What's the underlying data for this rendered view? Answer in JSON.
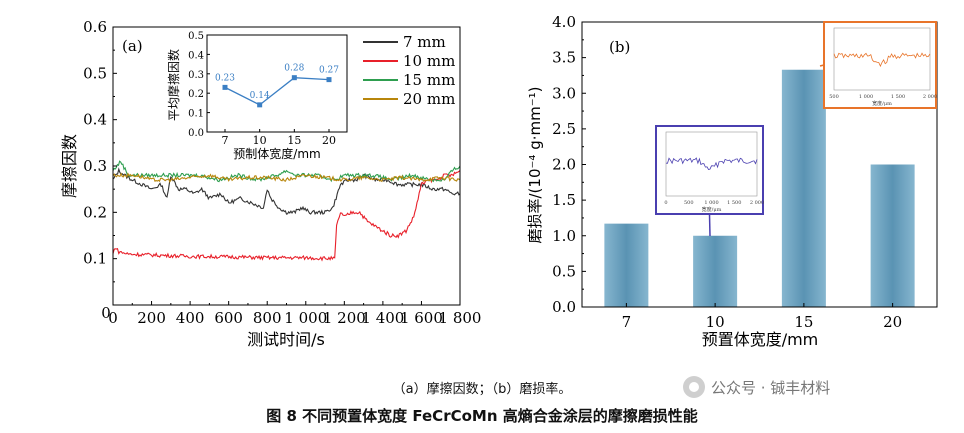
{
  "chart_data": [
    {
      "type": "line",
      "panel_label": "(a)",
      "xlabel": "测试时间/s",
      "ylabel": "摩擦因数",
      "xlim": [
        0,
        1800
      ],
      "ylim": [
        0,
        0.6
      ],
      "x_ticks": [
        "0",
        "200",
        "400",
        "600",
        "800",
        "1 000",
        "1 200",
        "1 400",
        "1 600",
        "1 800"
      ],
      "y_ticks": [
        "0.1",
        "0.2",
        "0.3",
        "0.4",
        "0.5",
        "0.6"
      ],
      "legend_position": "top-right",
      "series": [
        {
          "name": "7 mm",
          "color": "#333333",
          "x": [
            0,
            30,
            60,
            100,
            150,
            200,
            250,
            280,
            300,
            340,
            380,
            420,
            460,
            500,
            560,
            600,
            660,
            720,
            780,
            800,
            820,
            860,
            900,
            940,
            980,
            1020,
            1060,
            1100,
            1140,
            1180,
            1220,
            1260,
            1300,
            1360,
            1420,
            1480,
            1540,
            1600,
            1660,
            1720,
            1760,
            1800
          ],
          "y": [
            0.27,
            0.29,
            0.28,
            0.27,
            0.26,
            0.25,
            0.26,
            0.23,
            0.28,
            0.25,
            0.25,
            0.24,
            0.25,
            0.23,
            0.24,
            0.22,
            0.23,
            0.22,
            0.21,
            0.25,
            0.23,
            0.21,
            0.2,
            0.2,
            0.21,
            0.2,
            0.2,
            0.2,
            0.21,
            0.26,
            0.27,
            0.27,
            0.28,
            0.27,
            0.27,
            0.26,
            0.26,
            0.26,
            0.25,
            0.25,
            0.24,
            0.24
          ]
        },
        {
          "name": "10 mm",
          "color": "#e8202a",
          "x": [
            0,
            10,
            30,
            80,
            200,
            400,
            600,
            800,
            1000,
            1150,
            1160,
            1180,
            1200,
            1240,
            1280,
            1320,
            1360,
            1400,
            1440,
            1480,
            1520,
            1560,
            1600,
            1640,
            1680,
            1720,
            1760,
            1800
          ],
          "y": [
            0.11,
            0.125,
            0.115,
            0.11,
            0.108,
            0.105,
            0.104,
            0.102,
            0.102,
            0.1,
            0.17,
            0.2,
            0.19,
            0.2,
            0.2,
            0.18,
            0.17,
            0.16,
            0.15,
            0.15,
            0.16,
            0.19,
            0.26,
            0.27,
            0.27,
            0.28,
            0.28,
            0.29
          ]
        },
        {
          "name": "15 mm",
          "color": "#2e9e4f",
          "x": [
            0,
            40,
            80,
            150,
            250,
            350,
            450,
            550,
            650,
            750,
            850,
            900,
            950,
            1050,
            1150,
            1200,
            1250,
            1350,
            1450,
            1550,
            1650,
            1720,
            1760,
            1800
          ],
          "y": [
            0.29,
            0.31,
            0.28,
            0.28,
            0.28,
            0.28,
            0.28,
            0.27,
            0.28,
            0.27,
            0.28,
            0.29,
            0.28,
            0.28,
            0.27,
            0.28,
            0.28,
            0.28,
            0.27,
            0.28,
            0.27,
            0.27,
            0.29,
            0.3
          ]
        },
        {
          "name": "20 mm",
          "color": "#b8860b",
          "x": [
            0,
            60,
            120,
            200,
            300,
            400,
            500,
            600,
            700,
            800,
            900,
            1000,
            1100,
            1200,
            1300,
            1400,
            1500,
            1600,
            1700,
            1800
          ],
          "y": [
            0.28,
            0.28,
            0.28,
            0.27,
            0.27,
            0.275,
            0.28,
            0.27,
            0.275,
            0.275,
            0.27,
            0.28,
            0.275,
            0.27,
            0.275,
            0.27,
            0.275,
            0.27,
            0.275,
            0.27
          ]
        }
      ],
      "inset": {
        "type": "line",
        "xlabel": "预制体宽度/mm",
        "ylabel": "平均摩擦因数",
        "categories": [
          "7",
          "10",
          "15",
          "20"
        ],
        "values": [
          0.23,
          0.14,
          0.28,
          0.27
        ],
        "value_labels": [
          "0.23",
          "0.14",
          "0.28",
          "0.27"
        ],
        "ylim": [
          0.0,
          0.5
        ],
        "y_ticks": [
          "0.0",
          "0.1",
          "0.2",
          "0.3",
          "0.4",
          "0.5"
        ],
        "color": "#3b7fc4"
      }
    },
    {
      "type": "bar",
      "panel_label": "(b)",
      "xlabel": "预置体宽度/mm",
      "ylabel": "磨损率/(10⁻⁴ g·mm⁻¹)",
      "categories": [
        "7",
        "10",
        "15",
        "20"
      ],
      "values": [
        1.17,
        1.0,
        3.33,
        2.0
      ],
      "ylim": [
        0,
        4.0
      ],
      "y_ticks": [
        "0.0",
        "0.5",
        "1.0",
        "1.5",
        "2.0",
        "2.5",
        "3.0",
        "3.5",
        "4.0"
      ],
      "insets": [
        {
          "attached_to": "10",
          "border_color": "#4a3fb0",
          "x_ticks": [
            "0",
            "500",
            "1 000",
            "1 500",
            "2 000"
          ],
          "xlabel": "宽度/μm"
        },
        {
          "attached_to": "15",
          "border_color": "#e8742a",
          "x_ticks": [
            "500",
            "1 000",
            "1 500",
            "2 000"
          ],
          "xlabel": "宽度/μm"
        }
      ]
    }
  ],
  "captions": {
    "sub": "（a）摩擦因数；（b）磨损率。",
    "main": "图 8  不同预置体宽度 FeCrCoMn 高熵合金涂层的摩擦磨损性能",
    "watermark": "公众号 · 铖丰材料"
  }
}
